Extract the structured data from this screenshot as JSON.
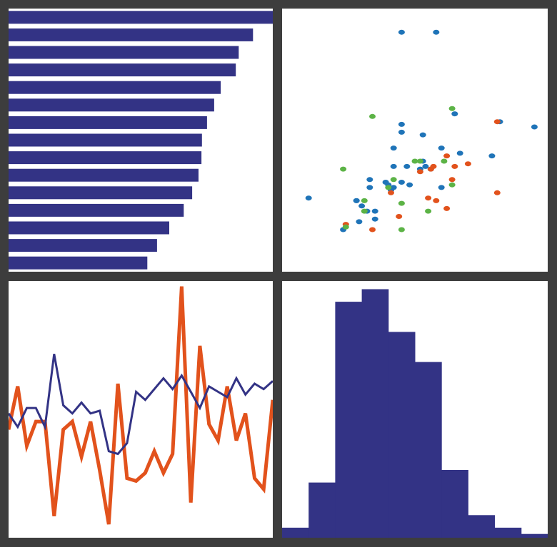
{
  "colors": {
    "background": "#3d3d3d",
    "panel": "#ffffff",
    "navy": "#333385",
    "orange": "#e2521c",
    "blue": "#1f74b8",
    "green": "#5cb346"
  },
  "chart_data": [
    {
      "type": "bar",
      "orientation": "horizontal",
      "title": "",
      "xlabel": "",
      "ylabel": "",
      "axes": false,
      "grid": false,
      "xlim": [
        0,
        1
      ],
      "values": [
        1.0,
        0.925,
        0.871,
        0.86,
        0.803,
        0.778,
        0.751,
        0.732,
        0.73,
        0.719,
        0.695,
        0.663,
        0.608,
        0.562,
        0.525
      ],
      "color": "#333385"
    },
    {
      "type": "scatter",
      "title": "",
      "xlabel": "",
      "ylabel": "",
      "axes": false,
      "grid": false,
      "xlim": [
        0,
        10
      ],
      "ylim": [
        0,
        10
      ],
      "series": [
        {
          "color": "#1f74b8",
          "points": [
            [
              4.5,
              9.1
            ],
            [
              5.8,
              9.1
            ],
            [
              6.5,
              6.0
            ],
            [
              8.2,
              5.7
            ],
            [
              9.5,
              5.5
            ],
            [
              4.5,
              5.6
            ],
            [
              4.2,
              4.7
            ],
            [
              5.3,
              5.2
            ],
            [
              5.3,
              4.2
            ],
            [
              6.0,
              4.7
            ],
            [
              6.7,
              4.5
            ],
            [
              4.2,
              4.0
            ],
            [
              4.7,
              4.0
            ],
            [
              3.3,
              3.2
            ],
            [
              3.9,
              3.4
            ],
            [
              4.5,
              3.4
            ],
            [
              4.8,
              3.3
            ],
            [
              5.6,
              3.9
            ],
            [
              7.9,
              4.4
            ],
            [
              5.2,
              3.9
            ],
            [
              5.4,
              4.0
            ],
            [
              6.0,
              3.2
            ],
            [
              4.2,
              3.2
            ],
            [
              4.0,
              3.3
            ],
            [
              3.3,
              3.5
            ],
            [
              2.8,
              2.7
            ],
            [
              1.0,
              2.8
            ],
            [
              2.8,
              2.7
            ],
            [
              3.0,
              2.5
            ],
            [
              3.2,
              2.3
            ],
            [
              3.5,
              2.3
            ],
            [
              3.5,
              2.0
            ],
            [
              2.3,
              1.6
            ],
            [
              2.9,
              1.9
            ],
            [
              4.1,
              3.1
            ],
            [
              4.5,
              5.3
            ]
          ]
        },
        {
          "color": "#e2521c",
          "points": [
            [
              8.1,
              5.7
            ],
            [
              6.2,
              4.4
            ],
            [
              6.5,
              4.0
            ],
            [
              7.0,
              4.1
            ],
            [
              5.2,
              3.8
            ],
            [
              6.4,
              3.5
            ],
            [
              4.1,
              3.0
            ],
            [
              8.1,
              3.0
            ],
            [
              5.5,
              2.8
            ],
            [
              5.8,
              2.7
            ],
            [
              6.2,
              2.4
            ],
            [
              4.4,
              2.1
            ],
            [
              3.4,
              1.6
            ],
            [
              5.6,
              3.9
            ],
            [
              5.7,
              4.0
            ],
            [
              2.4,
              1.8
            ]
          ]
        },
        {
          "color": "#5cb346",
          "points": [
            [
              6.4,
              6.2
            ],
            [
              3.4,
              5.9
            ],
            [
              5.0,
              4.2
            ],
            [
              5.2,
              4.2
            ],
            [
              6.1,
              4.2
            ],
            [
              2.3,
              3.9
            ],
            [
              4.2,
              3.5
            ],
            [
              4.0,
              3.2
            ],
            [
              6.4,
              3.3
            ],
            [
              3.1,
              2.7
            ],
            [
              4.5,
              2.6
            ],
            [
              5.5,
              2.3
            ],
            [
              3.1,
              2.3
            ],
            [
              2.4,
              1.7
            ],
            [
              4.5,
              1.6
            ]
          ]
        }
      ]
    },
    {
      "type": "line",
      "title": "",
      "xlabel": "",
      "ylabel": "",
      "axes": false,
      "grid": false,
      "x": [
        0,
        1,
        2,
        3,
        4,
        5,
        6,
        7,
        8,
        9,
        10,
        11,
        12,
        13,
        14,
        15,
        16,
        17,
        18,
        19,
        20,
        21,
        22,
        23,
        24,
        25,
        26,
        27,
        28,
        29
      ],
      "xlim": [
        0,
        29
      ],
      "ylim": [
        -4,
        5.5
      ],
      "series": [
        {
          "color": "#333385",
          "width": 3,
          "values": [
            0.6,
            0.1,
            0.8,
            0.8,
            0.1,
            2.8,
            0.9,
            0.6,
            1.0,
            0.6,
            0.7,
            -0.8,
            -0.9,
            -0.5,
            1.4,
            1.1,
            1.5,
            1.9,
            1.5,
            2.0,
            1.4,
            0.8,
            1.6,
            1.4,
            1.2,
            1.9,
            1.3,
            1.7,
            1.5,
            1.8
          ]
        },
        {
          "color": "#e2521c",
          "width": 5,
          "values": [
            0.0,
            1.6,
            -0.6,
            0.3,
            0.3,
            -3.2,
            0.0,
            0.3,
            -1.0,
            0.3,
            -1.5,
            -3.5,
            1.7,
            -1.8,
            -1.9,
            -1.6,
            -0.8,
            -1.6,
            -0.9,
            5.3,
            -2.7,
            3.1,
            0.2,
            -0.4,
            1.6,
            -0.4,
            0.6,
            -1.8,
            -2.2,
            1.1
          ]
        }
      ]
    },
    {
      "type": "histogram",
      "title": "",
      "xlabel": "",
      "ylabel": "",
      "axes": false,
      "grid": false,
      "bins": 10,
      "ylim": [
        0,
        20
      ],
      "values": [
        0.8,
        4.4,
        18.8,
        19.8,
        16.4,
        14.0,
        5.4,
        1.8,
        0.8,
        0.3
      ],
      "color": "#333385"
    }
  ]
}
